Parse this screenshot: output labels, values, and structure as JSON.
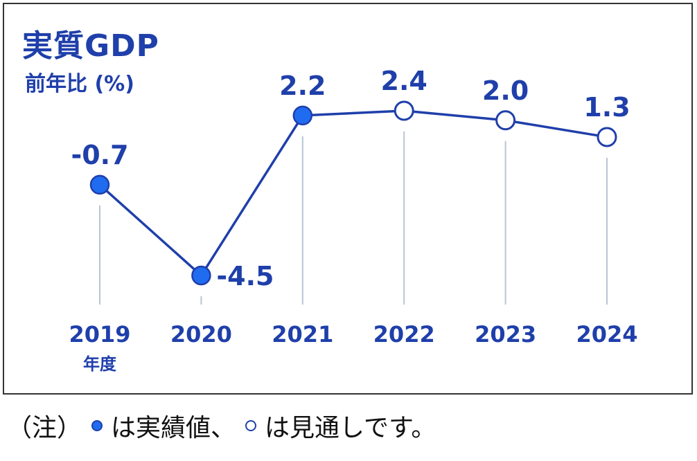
{
  "chart_data": {
    "type": "line",
    "title": "実質GDP",
    "ylabel": "前年比 (%)",
    "x_unit_label": "年度",
    "categories": [
      "2019",
      "2020",
      "2021",
      "2022",
      "2023",
      "2024"
    ],
    "value_labels": [
      "-0.7",
      "-4.5",
      "2.2",
      "2.4",
      "2.0",
      "1.3"
    ],
    "values": [
      -0.7,
      -4.5,
      2.2,
      2.4,
      2.0,
      1.3
    ],
    "status": [
      "actual",
      "actual",
      "actual",
      "forecast",
      "forecast",
      "forecast"
    ],
    "grid": false,
    "legend": "none",
    "colors": {
      "line": "#1f3faa",
      "actual_fill": "#1f6cf0",
      "forecast_fill": "#ffffff",
      "leader": "#b8c4d6"
    }
  },
  "note": {
    "prefix": "（注）",
    "actual_text": "は実績値、",
    "forecast_text": "は見通しです。"
  }
}
